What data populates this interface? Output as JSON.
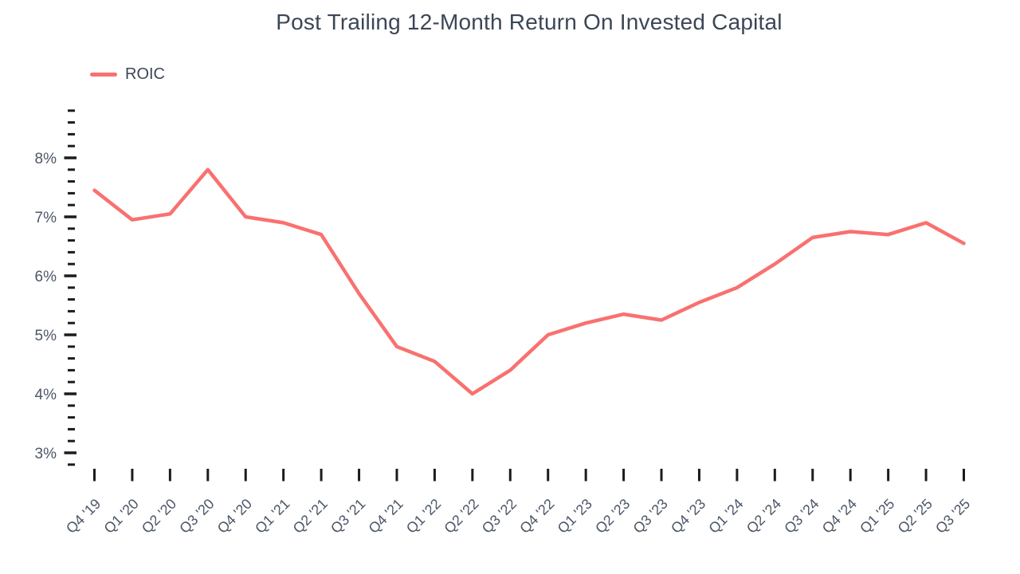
{
  "title": "Post Trailing 12-Month Return On Invested Capital",
  "legend": {
    "items": [
      {
        "label": "ROIC",
        "color": "#f87170"
      }
    ]
  },
  "colors": {
    "line": "#f87170",
    "title_text": "#3b4656",
    "axis_text": "#4c5767",
    "tick": "#1a1c1f",
    "background": "#ffffff"
  },
  "chart_data": {
    "type": "line",
    "title": "Post Trailing 12-Month Return On Invested Capital",
    "xlabel": "",
    "ylabel": "",
    "y_unit": "%",
    "grid": false,
    "legend_position": "top-left",
    "categories": [
      "Q4 '19",
      "Q1 '20",
      "Q2 '20",
      "Q3 '20",
      "Q4 '20",
      "Q1 '21",
      "Q2 '21",
      "Q3 '21",
      "Q4 '21",
      "Q1 '22",
      "Q2 '22",
      "Q3 '22",
      "Q4 '22",
      "Q1 '23",
      "Q2 '23",
      "Q3 '23",
      "Q4 '23",
      "Q1 '24",
      "Q2 '24",
      "Q3 '24",
      "Q4 '24",
      "Q1 '25",
      "Q2 '25",
      "Q3 '25"
    ],
    "series": [
      {
        "name": "ROIC",
        "color": "#f87170",
        "values": [
          7.45,
          6.95,
          7.05,
          7.8,
          7.0,
          6.9,
          6.7,
          5.7,
          4.8,
          4.55,
          4.0,
          4.4,
          5.0,
          5.2,
          5.35,
          5.25,
          5.55,
          5.8,
          6.2,
          6.65,
          6.75,
          6.7,
          6.9,
          6.55
        ]
      }
    ],
    "ylim": [
      2.8,
      8.8
    ],
    "y_major_tick_values": [
      3,
      4,
      5,
      6,
      7,
      8
    ],
    "y_major_tick_labels": [
      "3%",
      "4%",
      "5%",
      "6%",
      "7%",
      "8%"
    ],
    "y_minor_step": 0.2
  }
}
